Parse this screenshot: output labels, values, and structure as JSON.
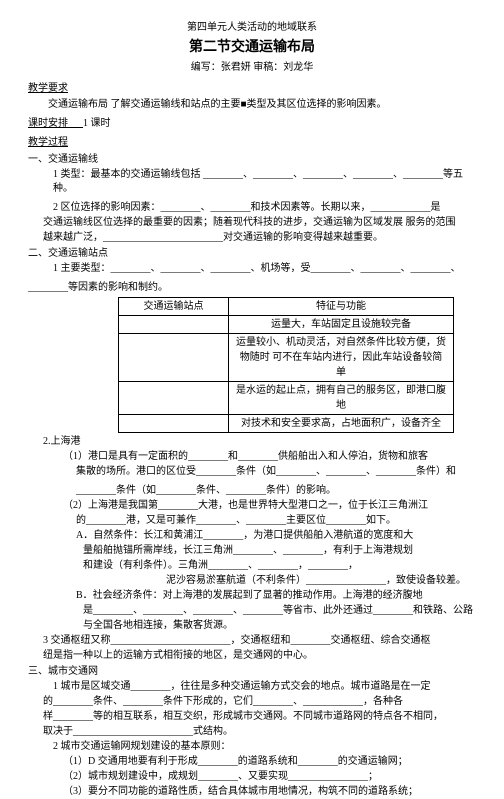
{
  "header": {
    "unit": "第四单元人类活动的地域联系",
    "title": "第二节交通运输布局",
    "author_line": "编写：张君妍  审稿：刘龙华"
  },
  "sections": {
    "jxyq": {
      "label": "教学要求",
      "text": "交通运输布局  了解交通运输线和站点的主要■类型及其区位选择的影响因素。"
    },
    "ksap": {
      "label": "课时安排",
      "text": "1 课时"
    },
    "jxguocheng": "教学过程"
  },
  "part1": {
    "heading": "一、交通运输线",
    "type_line": "1 类型：最基本的交通运输线包括 ________、________、________、________、________等五种。",
    "factor_line1": "2 区位选择的影响因素：________、________和技术因素等。长期以来，____________是",
    "factor_line2": "交通运输线区位选择的最重要的因素；随着现代科技的进步，交通运输为区域发展  服务的范围",
    "factor_line3": "越来越广泛，________________________对交通运输的影响变得越来越重要。"
  },
  "part2": {
    "heading": "二、交通运输站点",
    "main_type_line": "1 主要类型：________、________、________、机场等，受________、________、________、",
    "cont_line": "________等因素的影响和制约。",
    "table": {
      "head_left": "交通运输站点",
      "head_right": "特征与功能",
      "r1_right": "运量大，车站固定且设施较完备",
      "r2_right": "运量较小、机动灵活，对自然条件比较方便，货物随时  可不在车站内进行，因此车站设备较简单",
      "r3_right": "是水运的起止点，拥有自己的服务区，即港口腹地",
      "r4_right": "对技术和安全要求高，占地面积广，设备齐全"
    },
    "shanghai": {
      "label": "2.上海港",
      "l1": "（1）港口是具有一定面积的________和________供船舶出入和人停泊，货物和旅客",
      "l2": "集散的场所。港口的区位受________条件（如________、________、________条件）和",
      "l3": "________条件（如________条件、________条件）的影响。",
      "l4": "（2）上海港是我国第________大港，也是世界特大型港口之一，位于长江三角洲江",
      "l5": "的________港，又是可兼作________、________主要区位________如下。",
      "lA": "A．自然条件：长江和黄浦江________，为港口提供船舶入港航道的宽度和大",
      "lA2": "量船舶抛锚所需岸线，长江三角洲________、________，有利于上海港规划",
      "lA3": "和建设（有利条件）。三角洲________、________，________，",
      "lA4": "泥沙容易淤塞航道（不利条件）________________，致使设备较差。",
      "lB": "B．社会经济条件：对上海港的发展起到了显著的推动作用。上海港的经济腹地",
      "lB2": "是________、________、________、________等省市、此外还通过________和铁路、公路",
      "lB3": "与全国各地相连接，集散客货源。",
      "l6": "3 交通枢纽又称________________________，交通枢纽和________交通枢纽、综合交通枢",
      "l7": "纽是指一种以上的运输方式相衔接的地区，是交通网的中心。"
    }
  },
  "part3": {
    "heading": "三、城市交通网",
    "l1": "1 城市是区域交通________，往往是多种交通运输方式交会的地点。城市道路是在一定",
    "l2": "的________条件、________条件下形成的，它们________、____________，各种各",
    "l3": "样________等的相互联系，相互交织，形成城市交通网。不同城市道路网的特点各不相同，",
    "l4": "取决于________________________式结构。",
    "l5": "2 城市交通运输网规划建设的基本原则：",
    "l6": "（1）D 交通用地要有利于形成________的道路系统和________的交通运输网；",
    "l7": "（2）城市规划建设中，成规划________、又要实现________________；",
    "l8": "（3）要分不同功能的道路性质，结合具体城市用地情况，构筑不同的道路系统；"
  }
}
